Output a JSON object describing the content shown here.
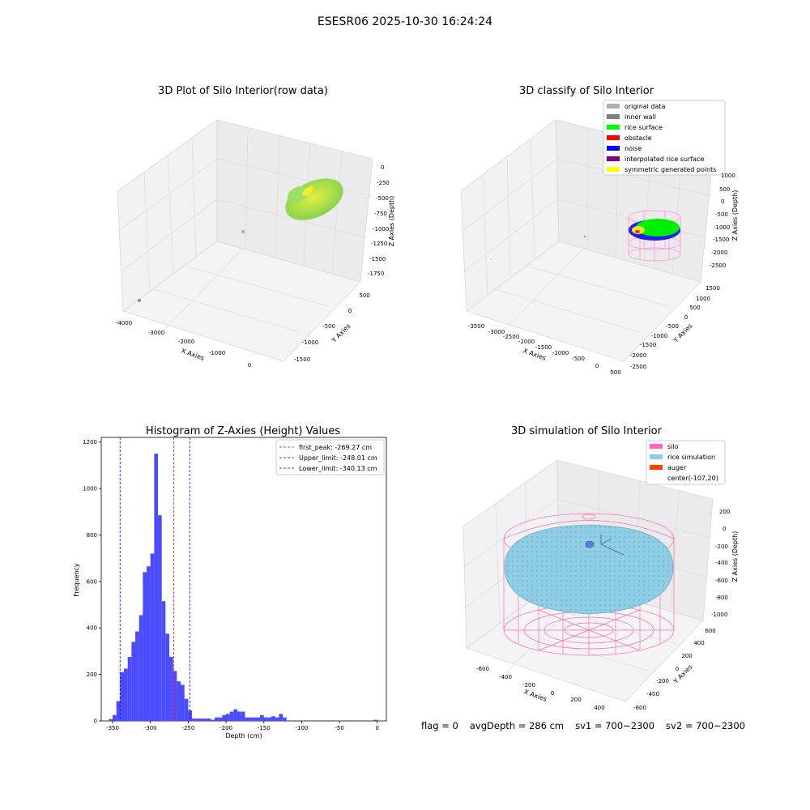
{
  "suptitle": "ESESR06 2025-10-30 16:24:24",
  "panels": {
    "raw": {
      "title": "3D Plot of Silo Interior(row data)",
      "xlabel": "X Axies",
      "ylabel": "Y Axies",
      "zlabel": "Z Axies (Depth)",
      "xticks": [
        "-4000",
        "-3000",
        "-2000",
        "-1000",
        "0"
      ],
      "yticks": [
        "500",
        "0",
        "-500",
        "-1000",
        "-1500"
      ],
      "zticks": [
        "0",
        "-250",
        "-500",
        "-750",
        "-1000",
        "-1250",
        "-1500",
        "-1750"
      ]
    },
    "classify": {
      "title": "3D classify of Silo Interior",
      "xlabel": "X Axies",
      "ylabel": "Y Axies",
      "zlabel": "Z Axies (Depth)",
      "xticks": [
        "-3500",
        "-3000",
        "-2500",
        "-2000",
        "-1500",
        "-1000",
        "-500",
        "0",
        "500"
      ],
      "yticks": [
        "1500",
        "1000",
        "500",
        "0",
        "-500",
        "-1000",
        "-1500",
        "-2000",
        "-2500"
      ],
      "zticks": [
        "1000",
        "500",
        "0",
        "-500",
        "-1000",
        "-1500",
        "-2000",
        "-2500"
      ],
      "legend": [
        {
          "label": "original data",
          "color": "#b0b0b0"
        },
        {
          "label": "inner wall",
          "color": "#808080"
        },
        {
          "label": "rice surface",
          "color": "#00ff00"
        },
        {
          "label": "obstacle",
          "color": "#ff0000"
        },
        {
          "label": "noise",
          "color": "#0000ff"
        },
        {
          "label": "interpolated rice surface",
          "color": "#800080"
        },
        {
          "label": "symmetric generated points",
          "color": "#ffff00"
        }
      ]
    },
    "simulation": {
      "title": "3D simulation of Silo Interior",
      "xlabel": "X Axies",
      "ylabel": "Y Axies",
      "zlabel": "Z Axies (Depth)",
      "xticks": [
        "-600",
        "-400",
        "-200",
        "0",
        "200",
        "400"
      ],
      "yticks": [
        "600",
        "400",
        "200",
        "0",
        "-200",
        "-400",
        "-600"
      ],
      "zticks": [
        "200",
        "0",
        "-200",
        "-400",
        "-600",
        "-800",
        "-1000"
      ],
      "legend": [
        {
          "label": "silo",
          "color": "#ff69b4"
        },
        {
          "label": "rice simulation",
          "color": "#87ceeb"
        },
        {
          "label": "auger",
          "color": "#ff4500"
        },
        {
          "label": "center(-107,20)",
          "color": ""
        }
      ]
    }
  },
  "footer": {
    "flag": "flag = 0",
    "avg_depth": "avgDepth = 286 cm",
    "sv1": "sv1 = 700~2300",
    "sv2": "sv2 = 700~2300"
  },
  "chart_data": [
    {
      "type": "scatter",
      "title": "3D Plot of Silo Interior(row data)",
      "xlabel": "X Axies",
      "ylabel": "Y Axies",
      "zlabel": "Z Axies (Depth)",
      "xlim": [
        -4000,
        500
      ],
      "ylim": [
        -1800,
        700
      ],
      "zlim": [
        -1800,
        100
      ]
    },
    {
      "type": "scatter",
      "title": "3D classify of Silo Interior",
      "xlabel": "X Axies",
      "ylabel": "Y Axies",
      "zlabel": "Z Axies (Depth)",
      "xlim": [
        -3700,
        600
      ],
      "ylim": [
        -2700,
        1700
      ],
      "zlim": [
        -2800,
        1100
      ],
      "legend": [
        "original data",
        "inner wall",
        "rice surface",
        "obstacle",
        "noise",
        "interpolated rice surface",
        "symmetric generated points"
      ],
      "legend_position": "top-right"
    },
    {
      "type": "bar",
      "title": "Histogram of Z-Axies (Height) Values",
      "xlabel": "Depth (cm)",
      "ylabel": "Frequency",
      "xlim": [
        -365,
        12
      ],
      "ylim": [
        0,
        1220
      ],
      "xticks": [
        -350,
        -300,
        -250,
        -200,
        -150,
        -100,
        -50,
        0
      ],
      "yticks": [
        0,
        200,
        400,
        600,
        800,
        1000,
        1200
      ],
      "bin_width": 5,
      "bin_starts": [
        -355,
        -350,
        -345,
        -340,
        -335,
        -330,
        -325,
        -320,
        -315,
        -310,
        -305,
        -300,
        -295,
        -290,
        -285,
        -280,
        -275,
        -270,
        -265,
        -260,
        -255,
        -250,
        -245,
        -240,
        -235,
        -230,
        -225,
        -220,
        -215,
        -210,
        -205,
        -200,
        -195,
        -190,
        -185,
        -180,
        -175,
        -170,
        -165,
        -160,
        -155,
        -150,
        -145,
        -140,
        -135,
        -130,
        -125,
        -120,
        -115,
        -110,
        -105,
        -100,
        -95,
        -90,
        -85,
        -80,
        -75,
        -70,
        -65,
        -60,
        -55,
        -50,
        -45,
        -40,
        -35,
        -30,
        -25,
        -20,
        -15,
        -10,
        -5,
        0
      ],
      "values": [
        8,
        25,
        85,
        210,
        225,
        275,
        340,
        385,
        455,
        640,
        665,
        720,
        1150,
        885,
        515,
        375,
        275,
        215,
        170,
        155,
        95,
        45,
        10,
        10,
        10,
        10,
        10,
        5,
        15,
        15,
        25,
        30,
        40,
        50,
        40,
        40,
        15,
        15,
        15,
        15,
        25,
        15,
        15,
        20,
        15,
        30,
        15,
        0,
        0,
        0,
        0,
        0,
        0,
        0,
        0,
        0,
        0,
        0,
        0,
        0,
        0,
        0,
        0,
        0,
        0,
        0,
        0,
        0,
        0,
        0,
        5,
        0
      ],
      "reference_lines": [
        {
          "name": "first_peak: -269.27 cm",
          "x": -269.27,
          "color": "#ff0000"
        },
        {
          "name": "Upper_limit: -248.01 cm",
          "x": -248.01,
          "color": "#0000ff"
        },
        {
          "name": "Lower_limit: -340.13 cm",
          "x": -340.13,
          "color": "#0000ff"
        }
      ],
      "bar_color": "#4b4bff",
      "legend_position": "top-right"
    },
    {
      "type": "scatter",
      "title": "3D simulation of Silo Interior",
      "xlabel": "X Axies",
      "ylabel": "Y Axies",
      "zlabel": "Z Axies (Depth)",
      "xlim": [
        -700,
        500
      ],
      "ylim": [
        -700,
        700
      ],
      "zlim": [
        -1050,
        300
      ],
      "legend": [
        "silo",
        "rice simulation",
        "auger",
        "center(-107,20)"
      ],
      "legend_position": "top-right"
    }
  ]
}
